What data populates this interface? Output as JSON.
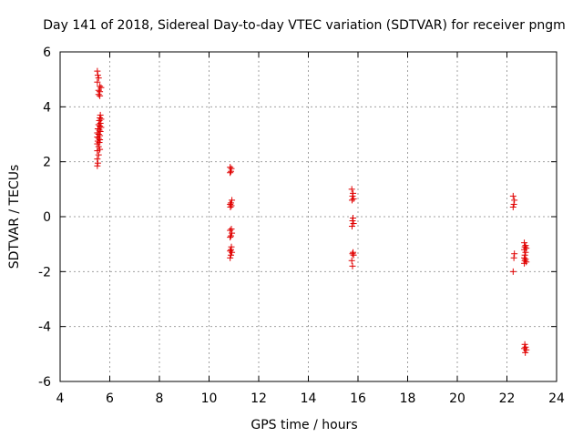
{
  "chart_data": {
    "type": "scatter",
    "title": "Day 141 of 2018, Sidereal Day-to-day VTEC variation (SDTVAR) for receiver pngm",
    "xlabel": "GPS time / hours",
    "ylabel": "SDTVAR / TECUs",
    "xlim": [
      4,
      24
    ],
    "ylim": [
      -6,
      6
    ],
    "xticks": [
      4,
      6,
      8,
      10,
      12,
      14,
      16,
      18,
      20,
      22,
      24
    ],
    "yticks": [
      -6,
      -4,
      -2,
      0,
      2,
      4,
      6
    ],
    "xtick_labels": [
      "4",
      "6",
      "8",
      "10",
      "12",
      "14",
      "16",
      "18",
      "20",
      "22",
      "24"
    ],
    "ytick_labels": [
      "-6",
      "-4",
      "-2",
      "0",
      "2",
      "4",
      "6"
    ],
    "grid": true,
    "marker": "+",
    "color": "#e00000",
    "series": [
      {
        "name": "pngm",
        "points": [
          [
            5.5,
            5.3
          ],
          [
            5.52,
            5.15
          ],
          [
            5.55,
            5.05
          ],
          [
            5.5,
            4.9
          ],
          [
            5.6,
            4.75
          ],
          [
            5.65,
            4.7
          ],
          [
            5.55,
            4.6
          ],
          [
            5.6,
            4.55
          ],
          [
            5.55,
            4.45
          ],
          [
            5.6,
            4.4
          ],
          [
            5.62,
            3.7
          ],
          [
            5.6,
            3.6
          ],
          [
            5.65,
            3.55
          ],
          [
            5.58,
            3.5
          ],
          [
            5.62,
            3.4
          ],
          [
            5.55,
            3.35
          ],
          [
            5.6,
            3.3
          ],
          [
            5.65,
            3.25
          ],
          [
            5.52,
            3.2
          ],
          [
            5.58,
            3.15
          ],
          [
            5.62,
            3.1
          ],
          [
            5.5,
            3.05
          ],
          [
            5.55,
            3.0
          ],
          [
            5.6,
            2.95
          ],
          [
            5.5,
            2.9
          ],
          [
            5.55,
            2.85
          ],
          [
            5.6,
            2.8
          ],
          [
            5.52,
            2.75
          ],
          [
            5.58,
            2.7
          ],
          [
            5.5,
            2.65
          ],
          [
            5.55,
            2.55
          ],
          [
            5.6,
            2.45
          ],
          [
            5.5,
            2.4
          ],
          [
            5.55,
            2.25
          ],
          [
            5.5,
            2.1
          ],
          [
            5.52,
            1.95
          ],
          [
            5.5,
            1.85
          ],
          [
            10.85,
            1.8
          ],
          [
            10.9,
            1.75
          ],
          [
            10.88,
            1.65
          ],
          [
            10.85,
            1.6
          ],
          [
            10.92,
            0.6
          ],
          [
            10.88,
            0.5
          ],
          [
            10.85,
            0.45
          ],
          [
            10.9,
            0.4
          ],
          [
            10.86,
            0.35
          ],
          [
            10.9,
            -0.45
          ],
          [
            10.85,
            -0.5
          ],
          [
            10.92,
            -0.6
          ],
          [
            10.88,
            -0.7
          ],
          [
            10.85,
            -0.75
          ],
          [
            10.9,
            -1.1
          ],
          [
            10.88,
            -1.2
          ],
          [
            10.85,
            -1.25
          ],
          [
            10.92,
            -1.3
          ],
          [
            10.88,
            -1.4
          ],
          [
            10.85,
            -1.5
          ],
          [
            15.75,
            1.0
          ],
          [
            15.8,
            0.85
          ],
          [
            15.78,
            0.75
          ],
          [
            15.82,
            0.65
          ],
          [
            15.76,
            0.6
          ],
          [
            15.8,
            -0.05
          ],
          [
            15.78,
            -0.15
          ],
          [
            15.82,
            -0.25
          ],
          [
            15.76,
            -0.35
          ],
          [
            15.8,
            -1.3
          ],
          [
            15.78,
            -1.35
          ],
          [
            15.82,
            -1.4
          ],
          [
            15.75,
            -1.6
          ],
          [
            15.78,
            -1.8
          ],
          [
            22.25,
            0.75
          ],
          [
            22.3,
            0.6
          ],
          [
            22.28,
            0.45
          ],
          [
            22.25,
            0.35
          ],
          [
            22.3,
            -1.35
          ],
          [
            22.28,
            -1.5
          ],
          [
            22.25,
            -2.0
          ],
          [
            22.7,
            -0.95
          ],
          [
            22.75,
            -1.05
          ],
          [
            22.72,
            -1.1
          ],
          [
            22.78,
            -1.15
          ],
          [
            22.7,
            -1.2
          ],
          [
            22.75,
            -1.3
          ],
          [
            22.72,
            -1.4
          ],
          [
            22.7,
            -1.5
          ],
          [
            22.75,
            -1.55
          ],
          [
            22.72,
            -1.6
          ],
          [
            22.78,
            -1.65
          ],
          [
            22.7,
            -1.7
          ],
          [
            22.72,
            -4.65
          ],
          [
            22.75,
            -4.75
          ],
          [
            22.7,
            -4.8
          ],
          [
            22.78,
            -4.85
          ],
          [
            22.74,
            -4.95
          ]
        ]
      }
    ]
  }
}
